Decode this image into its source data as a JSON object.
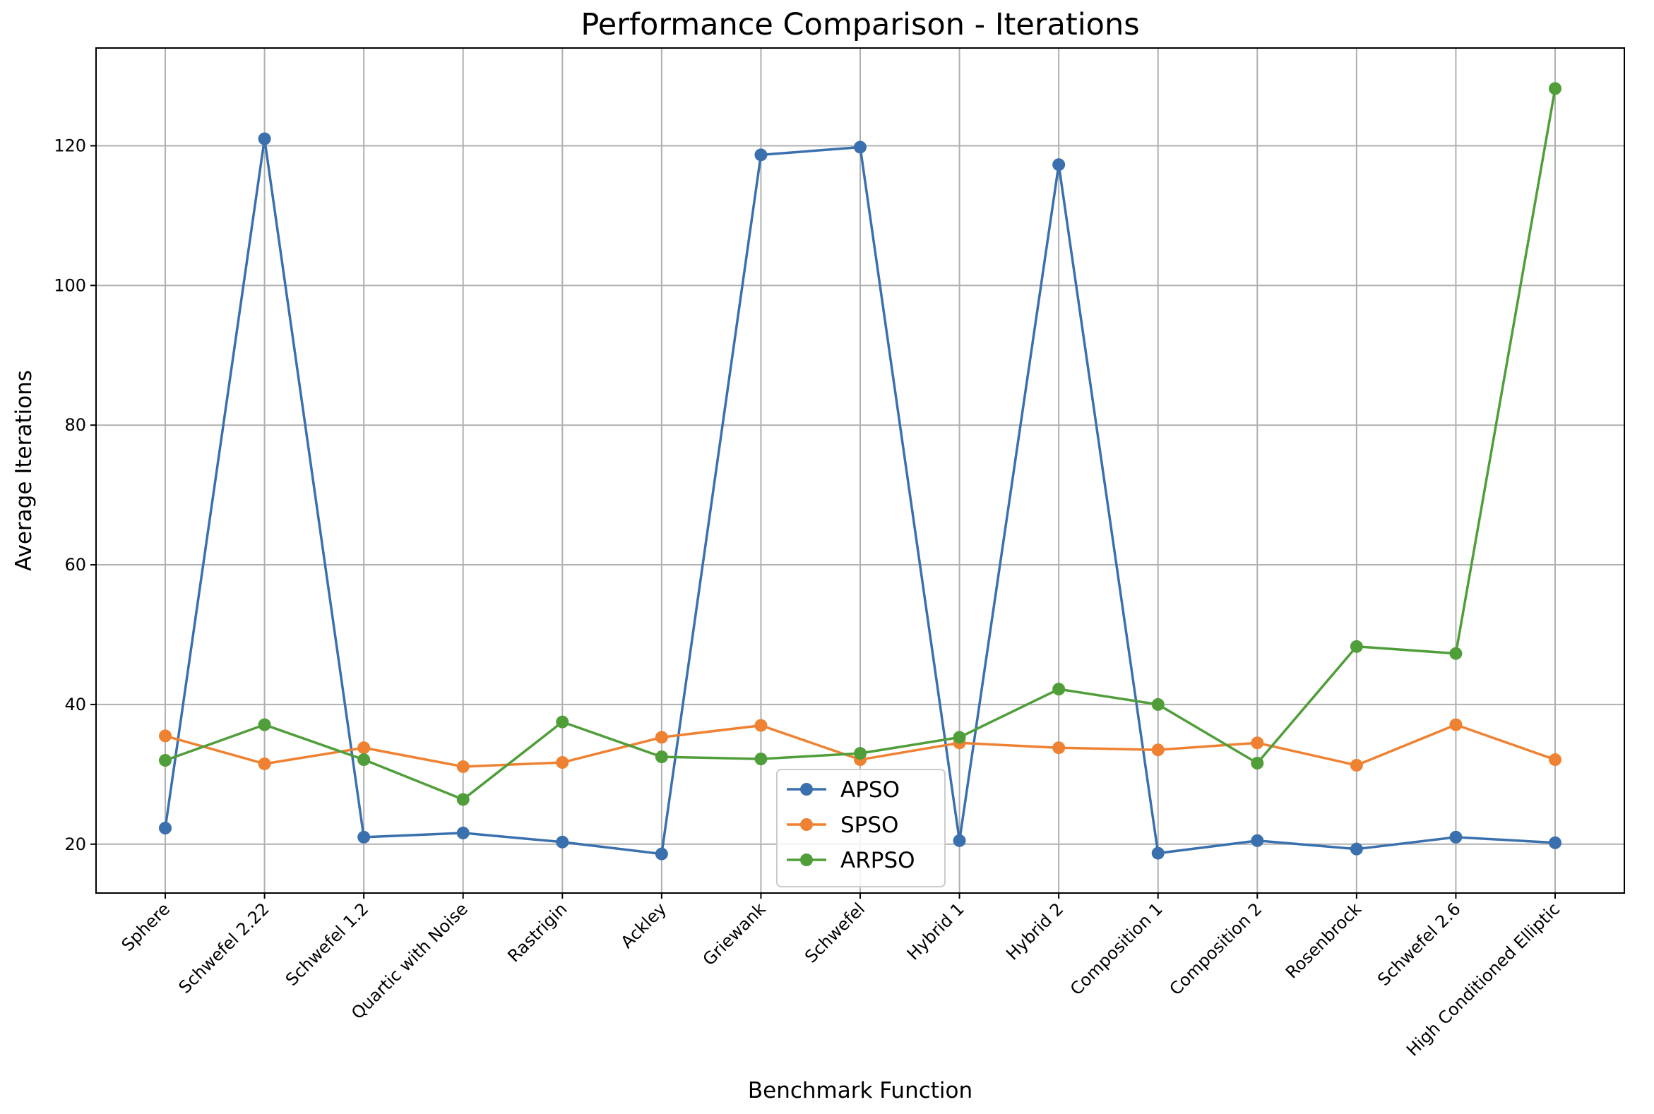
{
  "chart_data": {
    "type": "line",
    "title": "Performance Comparison - Iterations",
    "xlabel": "Benchmark Function",
    "ylabel": "Average Iterations",
    "ylim": [
      13,
      134
    ],
    "yticks": [
      20,
      40,
      60,
      80,
      100,
      120
    ],
    "grid": true,
    "legend_position": "bottom-center",
    "categories": [
      "Sphere",
      "Schwefel 2.22",
      "Schwefel 1.2",
      "Quartic with Noise",
      "Rastrigin",
      "Ackley",
      "Griewank",
      "Schwefel",
      "Hybrid 1",
      "Hybrid 2",
      "Composition 1",
      "Composition 2",
      "Rosenbrock",
      "Schwefel 2.6",
      "High Conditioned Elliptic"
    ],
    "series": [
      {
        "name": "APSO",
        "color": "#3a70ad",
        "values": [
          22.3,
          121.0,
          21.0,
          21.6,
          20.3,
          18.6,
          118.7,
          119.8,
          20.5,
          117.3,
          18.7,
          20.5,
          19.3,
          21.0,
          20.2
        ]
      },
      {
        "name": "SPSO",
        "color": "#ef8232",
        "values": [
          35.5,
          31.5,
          33.8,
          31.1,
          31.7,
          35.3,
          37.0,
          32.1,
          34.5,
          33.8,
          33.5,
          34.5,
          31.3,
          37.1,
          32.1
        ]
      },
      {
        "name": "ARPSO",
        "color": "#509e3a",
        "values": [
          32.0,
          37.1,
          32.1,
          26.4,
          37.5,
          32.5,
          32.2,
          33.0,
          35.3,
          42.2,
          40.0,
          31.6,
          48.3,
          47.3,
          128.2
        ]
      }
    ]
  }
}
